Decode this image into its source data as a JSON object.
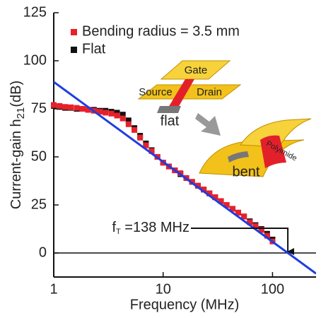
{
  "chart_data": {
    "type": "scatter",
    "xlabel": "Frequency (MHz)",
    "ylabel": [
      "Current-gain h",
      "21",
      "(dB)"
    ],
    "log_x": true,
    "xlim": [
      1,
      250
    ],
    "xticks": [
      1,
      10,
      100
    ],
    "ylim": [
      -12.5,
      125
    ],
    "yticks": [
      0,
      25,
      50,
      75,
      100,
      125
    ],
    "zero_line": true,
    "legend": "upper left",
    "series": [
      {
        "name": "Flat",
        "color": "#111111",
        "x": [
          1,
          1.13,
          1.27,
          1.43,
          1.62,
          1.83,
          2.06,
          2.33,
          2.63,
          2.97,
          3.36,
          3.79,
          4.28,
          4.83,
          5.46,
          6.16,
          6.96,
          7.86,
          8.87,
          10.0,
          11.3,
          12.8,
          14.4,
          16.3,
          18.4,
          20.8,
          23.5,
          26.5,
          29.9,
          33.8,
          38.1,
          43.1,
          48.6,
          54.9,
          62.0,
          70.0,
          79.1,
          89.3,
          100
        ],
        "values": [
          76.5,
          76,
          75.5,
          75.5,
          75,
          75,
          74.5,
          74.5,
          74,
          74,
          73.5,
          73,
          72,
          69,
          65,
          61,
          57,
          53.5,
          50,
          47,
          45,
          43,
          41,
          39,
          37,
          35,
          33,
          31,
          29,
          27,
          25,
          23,
          21,
          19,
          16.5,
          14.5,
          12.5,
          10,
          7
        ]
      },
      {
        "name": "Bending radius = 3.5 mm",
        "color": "#e8202a",
        "x": [
          1,
          1.13,
          1.27,
          1.43,
          1.62,
          1.83,
          2.06,
          2.33,
          2.63,
          2.97,
          3.36,
          3.79,
          4.28,
          4.83,
          5.46,
          6.16,
          6.96,
          7.86,
          8.87,
          10.0,
          11.3,
          12.8,
          14.4,
          16.3,
          18.4,
          20.8,
          23.5,
          26.5,
          29.9,
          33.8,
          38.1,
          43.1,
          48.6,
          54.9,
          62.0,
          70.0,
          79.1,
          89.3,
          100
        ],
        "values": [
          77,
          76.5,
          76,
          75.8,
          75.5,
          75,
          74.5,
          74,
          73.5,
          73,
          72.5,
          71.5,
          70,
          67,
          64,
          60,
          56,
          53,
          50,
          47,
          45,
          43,
          41.5,
          39,
          37,
          35,
          33,
          31,
          29,
          27,
          25,
          23,
          21,
          19,
          16,
          14,
          12,
          9,
          6
        ]
      }
    ],
    "fit_line": {
      "color": "#1f3de0",
      "x": [
        1,
        250
      ],
      "values": [
        89,
        -10.7
      ]
    },
    "annotation": {
      "text": "f",
      "subscript": "T",
      "rest": " =138 MHz",
      "x": 138,
      "y": 0
    },
    "inset": {
      "gate": "Gate",
      "source": "Source",
      "drain": "Drain",
      "flat": "flat",
      "bent": "bent",
      "substrate": "Polyimide"
    }
  }
}
